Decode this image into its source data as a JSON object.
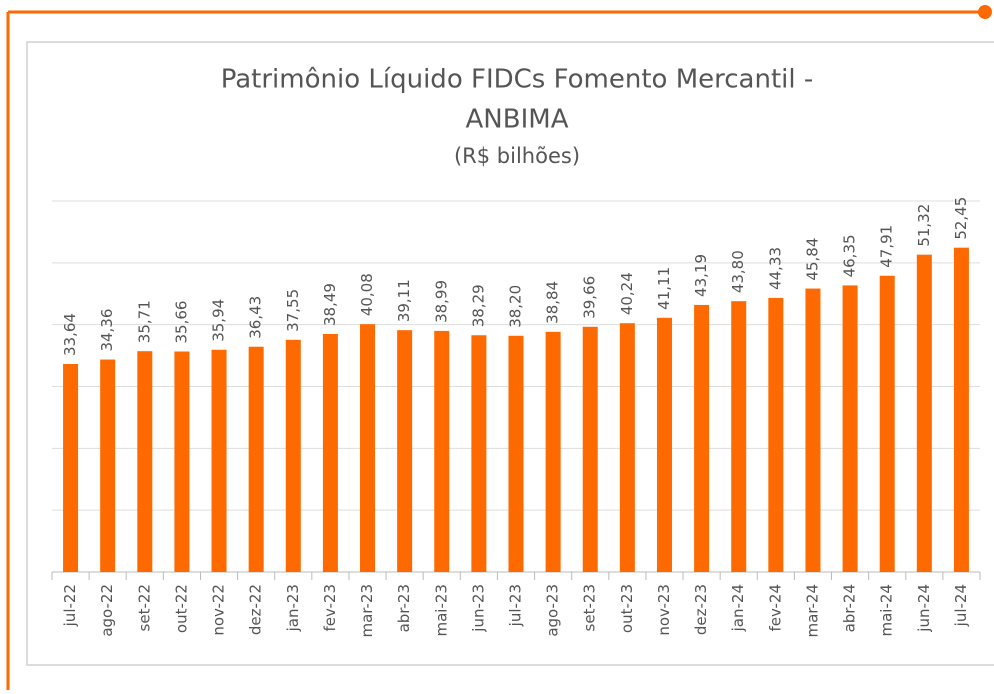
{
  "chart_data": {
    "type": "bar",
    "title": [
      "Patrimônio Líquido FIDCs Fomento Mercantil -",
      "ANBIMA"
    ],
    "subtitle": "(R$ bilhões)",
    "categories": [
      "jul-22",
      "ago-22",
      "set-22",
      "out-22",
      "nov-22",
      "dez-22",
      "jan-23",
      "fev-23",
      "mar-23",
      "abr-23",
      "mai-23",
      "jun-23",
      "jul-23",
      "ago-23",
      "set-23",
      "out-23",
      "nov-23",
      "dez-23",
      "jan-24",
      "fev-24",
      "mar-24",
      "abr-24",
      "mai-24",
      "jun-24",
      "jul-24"
    ],
    "values": [
      33.64,
      34.36,
      35.71,
      35.66,
      35.94,
      36.43,
      37.55,
      38.49,
      40.08,
      39.11,
      38.99,
      38.29,
      38.2,
      38.84,
      39.66,
      40.24,
      41.11,
      43.19,
      43.8,
      44.33,
      45.84,
      46.35,
      47.91,
      51.32,
      52.45
    ],
    "value_labels": [
      "33,64",
      "34,36",
      "35,71",
      "35,66",
      "35,94",
      "36,43",
      "37,55",
      "38,49",
      "40,08",
      "39,11",
      "38,99",
      "38,29",
      "38,20",
      "38,84",
      "39,66",
      "40,24",
      "41,11",
      "43,19",
      "43,80",
      "44,33",
      "45,84",
      "46,35",
      "47,91",
      "51,32",
      "52,45"
    ],
    "color": "#ff6a00",
    "ylim": [
      0,
      60
    ],
    "yticks": [
      0,
      10,
      20,
      30,
      40,
      50,
      60
    ],
    "grid": true
  }
}
